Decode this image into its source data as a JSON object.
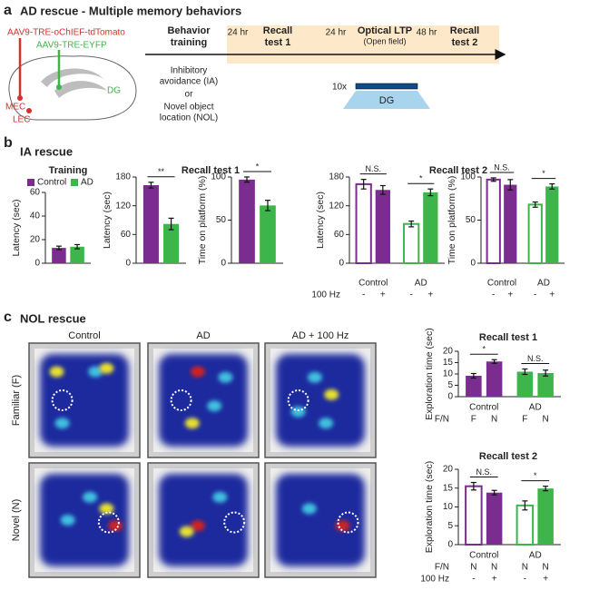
{
  "panel_a": {
    "label": "a",
    "title": "AD rescue - Multiple memory behaviors",
    "virus_red": "AAV9-TRE-oChIEF-tdTomato",
    "virus_green": "AAV9-TRE-EYFP",
    "region_dg": "DG",
    "region_mec": "MEC",
    "region_lec": "LEC",
    "steps": [
      {
        "lines": [
          "Behavior",
          "training"
        ]
      },
      {
        "lines": [
          "Recall",
          "test 1"
        ]
      },
      {
        "lines": [
          "Optical LTP"
        ],
        "note": "(Open field)"
      },
      {
        "lines": [
          "Recall",
          "test 2"
        ]
      }
    ],
    "intervals": [
      "24 hr",
      "24 hr",
      "48 hr"
    ],
    "training_types": [
      "Inhibitory",
      "avoidance (IA)",
      "or",
      "Novel object",
      "location (NOL)"
    ],
    "stim_count": "10x",
    "stim_region": "DG"
  },
  "panel_b": {
    "label": "b",
    "title": "IA rescue"
  },
  "panel_c": {
    "label": "c",
    "title": "NOL rescue",
    "conditions": [
      "Control",
      "AD",
      "AD + 100 Hz"
    ],
    "rows": [
      "Familiar (F)",
      "Novel (N)"
    ]
  },
  "chart_data": [
    {
      "type": "bar",
      "title": "Training",
      "ylabel": "Latency (sec)",
      "ylim": [
        0,
        60
      ],
      "yticks": [
        0,
        20,
        40,
        60
      ],
      "legend": true,
      "categories": [
        null
      ],
      "series": [
        {
          "name": "Control",
          "color": "#7a2d8f",
          "values": [
            13
          ],
          "errors": [
            1.5
          ]
        },
        {
          "name": "AD",
          "color": "#3db54a",
          "values": [
            14
          ],
          "errors": [
            1.8
          ]
        }
      ]
    },
    {
      "type": "bar",
      "title": "Recall test 1",
      "ylabel": "Latency (sec)",
      "ylim": [
        0,
        180
      ],
      "yticks": [
        0,
        60,
        120,
        180
      ],
      "categories": [
        null
      ],
      "significance": [
        "**"
      ],
      "series": [
        {
          "color": "#7a2d8f",
          "values": [
            163
          ],
          "errors": [
            6
          ]
        },
        {
          "color": "#3db54a",
          "values": [
            82
          ],
          "errors": [
            12
          ]
        }
      ]
    },
    {
      "type": "bar",
      "ylabel": "Time on platform (%)",
      "ylim": [
        0,
        100
      ],
      "yticks": [
        0,
        50,
        100
      ],
      "categories": [
        null
      ],
      "significance": [
        "*"
      ],
      "series": [
        {
          "color": "#7a2d8f",
          "values": [
            97
          ],
          "errors": [
            3
          ]
        },
        {
          "color": "#3db54a",
          "values": [
            67
          ],
          "errors": [
            6
          ]
        }
      ]
    },
    {
      "type": "bar",
      "title": "Recall test 2",
      "ylabel": "Latency (sec)",
      "ylim": [
        0,
        180
      ],
      "yticks": [
        0,
        60,
        120,
        180
      ],
      "categories": [
        "Control",
        "AD"
      ],
      "significance": [
        "N.S.",
        "*"
      ],
      "series": [
        {
          "hollow": true,
          "colors": [
            "#7a2d8f",
            "#3db54a"
          ],
          "values": [
            165,
            82
          ],
          "errors": [
            10,
            6
          ]
        },
        {
          "hollow": false,
          "colors": [
            "#7a2d8f",
            "#3db54a"
          ],
          "values": [
            153,
            148
          ],
          "errors": [
            9,
            7
          ]
        }
      ],
      "x_rows": [
        {
          "label": "100 Hz",
          "values": [
            "-",
            "+",
            "-",
            "+"
          ]
        }
      ]
    },
    {
      "type": "bar",
      "ylabel": "Time on platform (%)",
      "ylim": [
        0,
        100
      ],
      "yticks": [
        0,
        50,
        100
      ],
      "categories": [
        "Control",
        "AD"
      ],
      "significance": [
        "N.S.",
        "*"
      ],
      "series": [
        {
          "hollow": true,
          "colors": [
            "#7a2d8f",
            "#3db54a"
          ],
          "values": [
            97,
            68
          ],
          "errors": [
            2,
            3
          ]
        },
        {
          "hollow": false,
          "colors": [
            "#7a2d8f",
            "#3db54a"
          ],
          "values": [
            91,
            89
          ],
          "errors": [
            6,
            3
          ]
        }
      ],
      "x_rows": [
        {
          "values": [
            "-",
            "+",
            "-",
            "+"
          ]
        }
      ]
    },
    {
      "type": "bar",
      "title": "Recall test 1",
      "ylabel": "Exploration time (sec)",
      "ylim": [
        0,
        20
      ],
      "yticks": [
        0,
        5,
        10,
        15,
        20
      ],
      "categories": [
        "Control",
        "AD"
      ],
      "significance": [
        "*",
        "N.S."
      ],
      "series": [
        {
          "hollow": false,
          "colors": [
            "#7a2d8f",
            "#3db54a"
          ],
          "values": [
            9.2,
            11
          ],
          "errors": [
            1,
            1.2
          ]
        },
        {
          "hollow": false,
          "colors": [
            "#7a2d8f",
            "#3db54a"
          ],
          "values": [
            15.5,
            10.4
          ],
          "errors": [
            0.8,
            1.3
          ]
        }
      ],
      "x_rows": [
        {
          "label": "F/N",
          "values": [
            "F",
            "N",
            "F",
            "N"
          ]
        }
      ]
    },
    {
      "type": "bar",
      "title": "Recall test 2",
      "ylabel": "Exploration time (sec)",
      "ylim": [
        0,
        20
      ],
      "yticks": [
        0,
        5,
        10,
        15,
        20
      ],
      "categories": [
        "Control",
        "AD"
      ],
      "significance": [
        "N.S.",
        "*"
      ],
      "series": [
        {
          "hollow": true,
          "colors": [
            "#7a2d8f",
            "#3db54a"
          ],
          "values": [
            15.5,
            10.4
          ],
          "errors": [
            1,
            1.2
          ]
        },
        {
          "hollow": false,
          "colors": [
            "#7a2d8f",
            "#3db54a"
          ],
          "values": [
            13.8,
            14.9
          ],
          "errors": [
            0.6,
            0.6
          ]
        }
      ],
      "x_rows": [
        {
          "label": "F/N",
          "values": [
            "N",
            "N",
            "N",
            "N"
          ]
        },
        {
          "label": "100 Hz",
          "values": [
            "-",
            "+",
            "-",
            "+"
          ]
        }
      ]
    }
  ]
}
